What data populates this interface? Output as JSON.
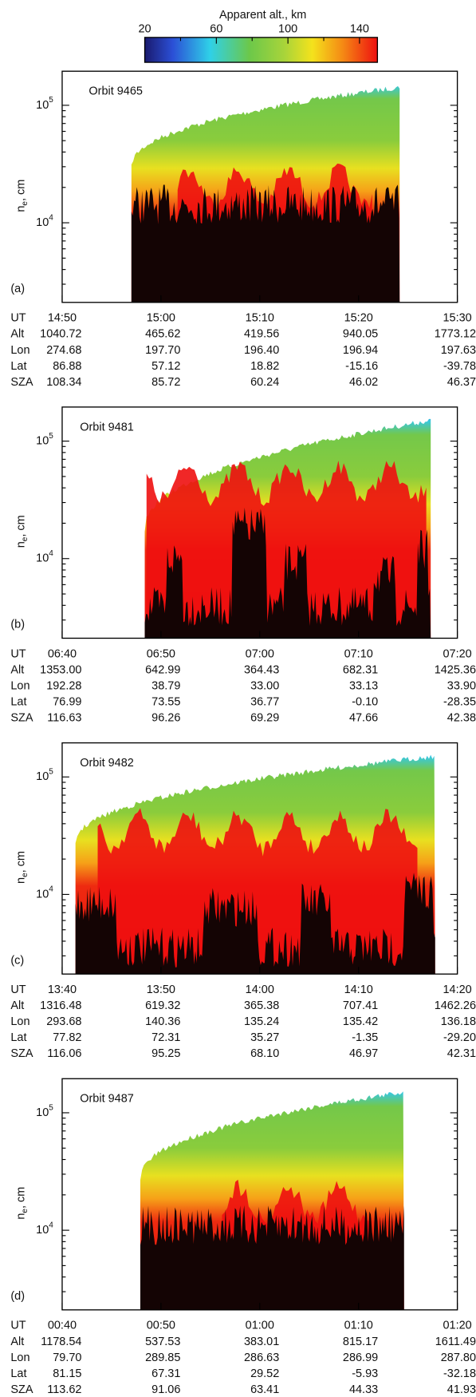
{
  "colorbar": {
    "title": "Apparent alt., km",
    "lim": [
      20,
      150
    ],
    "ticks": [
      20,
      60,
      100,
      140
    ]
  },
  "chart_data": [
    {
      "type": "heatmap",
      "panel_label": "(a)",
      "orbit": "Orbit 9465",
      "y_label": {
        "symbol": "n",
        "subscript": "e",
        "rest": ", cm"
      },
      "log_y": true,
      "ylim": [
        2100,
        195000
      ],
      "yticks": [
        {
          "value": 10000,
          "label": "10",
          "exponent": "4"
        },
        {
          "value": 100000,
          "label": "10",
          "exponent": "5"
        }
      ],
      "x_label": "UT",
      "xticks": [
        "14:50",
        "15:00",
        "15:10",
        "15:20",
        "15:30"
      ],
      "rows": [
        {
          "label": "Alt",
          "values": [
            "1040.72",
            "465.62",
            "419.56",
            "940.05",
            "1773.12"
          ]
        },
        {
          "label": "Lon",
          "values": [
            "274.68",
            "197.70",
            "196.40",
            "196.94",
            "197.63"
          ]
        },
        {
          "label": "Lat",
          "values": [
            "86.88",
            "57.12",
            "18.82",
            "-15.16",
            "-39.78"
          ]
        },
        {
          "label": "SZA",
          "values": [
            "108.34",
            "85.72",
            "60.24",
            "46.02",
            "46.37"
          ]
        }
      ]
    },
    {
      "type": "heatmap",
      "panel_label": "(b)",
      "orbit": "Orbit 9481",
      "y_label": {
        "symbol": "n",
        "subscript": "e",
        "rest": ", cm"
      },
      "log_y": true,
      "ylim": [
        2100,
        195000
      ],
      "yticks": [
        {
          "value": 10000,
          "label": "10",
          "exponent": "4"
        },
        {
          "value": 100000,
          "label": "10",
          "exponent": "5"
        }
      ],
      "x_label": "UT",
      "xticks": [
        "06:40",
        "06:50",
        "07:00",
        "07:10",
        "07:20"
      ],
      "rows": [
        {
          "label": "Alt",
          "values": [
            "1353.00",
            "642.99",
            "364.43",
            "682.31",
            "1425.36"
          ]
        },
        {
          "label": "Lon",
          "values": [
            "192.28",
            "38.79",
            "33.00",
            "33.13",
            "33.90"
          ]
        },
        {
          "label": "Lat",
          "values": [
            "76.99",
            "73.55",
            "36.77",
            "-0.10",
            "-28.35"
          ]
        },
        {
          "label": "SZA",
          "values": [
            "116.63",
            "96.26",
            "69.29",
            "47.66",
            "42.38"
          ]
        }
      ]
    },
    {
      "type": "heatmap",
      "panel_label": "(c)",
      "orbit": "Orbit 9482",
      "y_label": {
        "symbol": "n",
        "subscript": "e",
        "rest": ", cm"
      },
      "log_y": true,
      "ylim": [
        2100,
        195000
      ],
      "yticks": [
        {
          "value": 10000,
          "label": "10",
          "exponent": "4"
        },
        {
          "value": 100000,
          "label": "10",
          "exponent": "5"
        }
      ],
      "x_label": "UT",
      "xticks": [
        "13:40",
        "13:50",
        "14:00",
        "14:10",
        "14:20"
      ],
      "rows": [
        {
          "label": "Alt",
          "values": [
            "1316.48",
            "619.32",
            "365.38",
            "707.41",
            "1462.26"
          ]
        },
        {
          "label": "Lon",
          "values": [
            "293.68",
            "140.36",
            "135.24",
            "135.42",
            "136.18"
          ]
        },
        {
          "label": "Lat",
          "values": [
            "77.82",
            "72.31",
            "35.27",
            "-1.35",
            "-29.20"
          ]
        },
        {
          "label": "SZA",
          "values": [
            "116.06",
            "95.25",
            "68.10",
            "46.97",
            "42.31"
          ]
        }
      ]
    },
    {
      "type": "heatmap",
      "panel_label": "(d)",
      "orbit": "Orbit 9487",
      "y_label": {
        "symbol": "n",
        "subscript": "e",
        "rest": ", cm"
      },
      "log_y": true,
      "ylim": [
        2100,
        195000
      ],
      "yticks": [
        {
          "value": 10000,
          "label": "10",
          "exponent": "4"
        },
        {
          "value": 100000,
          "label": "10",
          "exponent": "5"
        }
      ],
      "x_label": "UT",
      "xticks": [
        "00:40",
        "00:50",
        "01:00",
        "01:10",
        "01:20"
      ],
      "rows": [
        {
          "label": "Alt",
          "values": [
            "1178.54",
            "537.53",
            "383.01",
            "815.17",
            "1611.49"
          ]
        },
        {
          "label": "Lon",
          "values": [
            "79.70",
            "289.85",
            "286.63",
            "286.99",
            "287.80"
          ]
        },
        {
          "label": "Lat",
          "values": [
            "81.15",
            "67.31",
            "29.52",
            "-5.93",
            "-32.18"
          ]
        },
        {
          "label": "SZA",
          "values": [
            "113.62",
            "91.06",
            "63.41",
            "44.33",
            "41.93"
          ]
        }
      ]
    }
  ]
}
